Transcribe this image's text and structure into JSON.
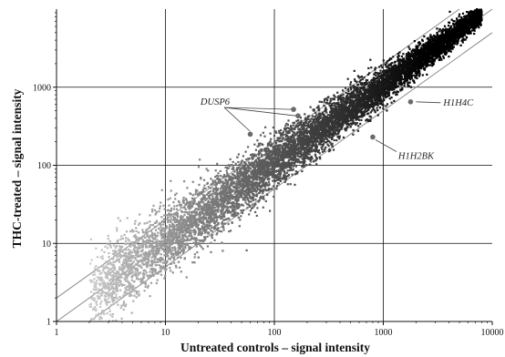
{
  "chart_data": {
    "type": "scatter",
    "xlabel": "Untreated controls – signal intensity",
    "ylabel": "THC-treated – signal intensity",
    "x_scale": "log",
    "y_scale": "log",
    "xlim": [
      1,
      10000
    ],
    "ylim": [
      1,
      10000
    ],
    "x_ticks": [
      {
        "value": 1,
        "label": "1"
      },
      {
        "value": 10,
        "label": "10"
      },
      {
        "value": 100,
        "label": "100"
      },
      {
        "value": 1000,
        "label": "1000"
      },
      {
        "value": 10000,
        "label": "10000"
      }
    ],
    "y_ticks": [
      {
        "value": 1,
        "label": "1"
      },
      {
        "value": 10,
        "label": "10"
      },
      {
        "value": 100,
        "label": "100"
      },
      {
        "value": 1000,
        "label": "1000"
      }
    ],
    "grid": true,
    "reference_lines": [
      {
        "slope": 1,
        "fold": 0.5
      },
      {
        "slope": 1,
        "fold": 1
      },
      {
        "slope": 1,
        "fold": 2
      }
    ],
    "point_cloud": {
      "n_points": 9000,
      "x_range": [
        2,
        8000
      ],
      "trend": "y ≈ x, spread narrowing with intensity",
      "shading": "light grey at low intensity to black at high intensity"
    },
    "highlighted_genes": [
      {
        "label": "DUSP6",
        "points": [
          [
            60,
            250
          ],
          [
            165,
            430
          ],
          [
            150,
            520
          ]
        ]
      },
      {
        "label": "H1H4C",
        "x": 1780,
        "y": 650
      },
      {
        "label": "H1H2BK",
        "x": 800,
        "y": 230
      }
    ],
    "colors": {
      "grid": "#111111",
      "reference_line": "#8a8a8a",
      "highlight_marker": "#6a6a6a"
    }
  }
}
